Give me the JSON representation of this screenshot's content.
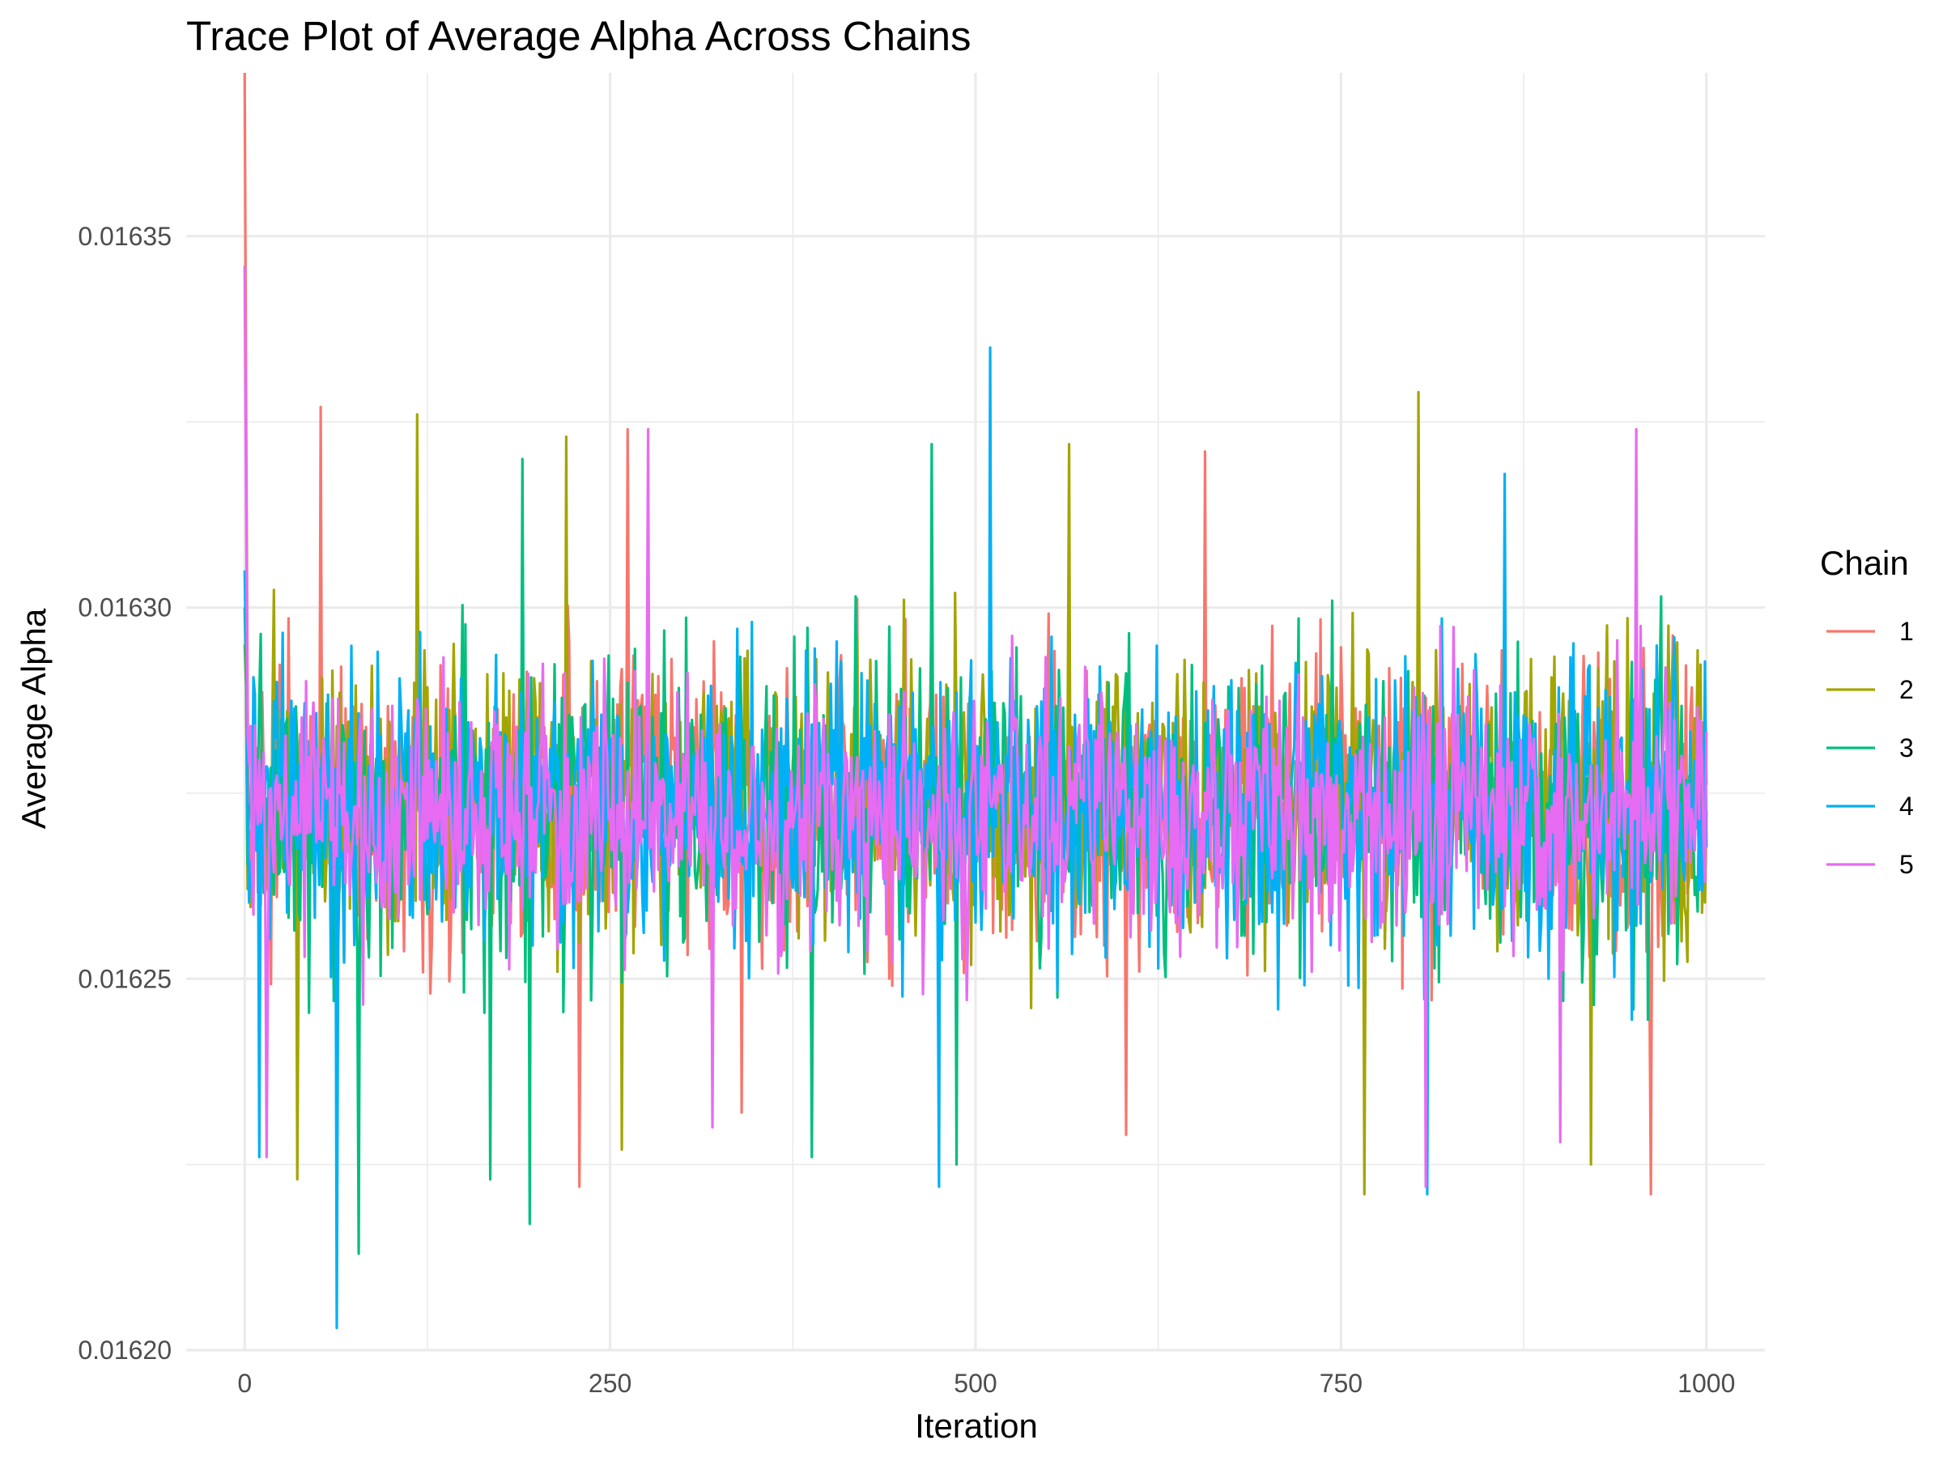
{
  "chart_data": {
    "type": "line",
    "title": "Trace Plot of Average Alpha Across Chains",
    "xlabel": "Iteration",
    "ylabel": "Average Alpha",
    "xlim": [
      -40,
      1040
    ],
    "ylim": [
      0.0162,
      0.016372
    ],
    "x_range": [
      0,
      1000
    ],
    "xticks": [
      0,
      250,
      500,
      750,
      1000
    ],
    "xtick_labels": [
      "0",
      "250",
      "500",
      "750",
      "1000"
    ],
    "yticks": [
      0.0162,
      0.01625,
      0.0163,
      0.01635
    ],
    "ytick_labels": [
      "0.01620",
      "0.01625",
      "0.01630",
      "0.01635"
    ],
    "grid": true,
    "legend": {
      "title": "Chain",
      "position": "right"
    },
    "series": [
      {
        "name": "1",
        "color": "#F8766D",
        "mean": 0.016273,
        "spread": 9.5e-06,
        "start": 0.016372,
        "peaks": [
          {
            "x": 52,
            "y": 0.016327
          },
          {
            "x": 262,
            "y": 0.016324
          },
          {
            "x": 657,
            "y": 0.016321
          },
          {
            "x": 229,
            "y": 0.016222
          },
          {
            "x": 603,
            "y": 0.016229
          },
          {
            "x": 962,
            "y": 0.016221
          },
          {
            "x": 340,
            "y": 0.016232
          }
        ]
      },
      {
        "name": "2",
        "color": "#A3A500",
        "mean": 0.016274,
        "spread": 9.5e-06,
        "start": 0.016295,
        "peaks": [
          {
            "x": 118,
            "y": 0.016326
          },
          {
            "x": 220,
            "y": 0.016323
          },
          {
            "x": 564,
            "y": 0.016322
          },
          {
            "x": 803,
            "y": 0.016329
          },
          {
            "x": 36,
            "y": 0.016223
          },
          {
            "x": 258,
            "y": 0.016227
          },
          {
            "x": 766,
            "y": 0.016221
          },
          {
            "x": 921,
            "y": 0.016225
          }
        ]
      },
      {
        "name": "3",
        "color": "#00BF7D",
        "mean": 0.016273,
        "spread": 9.5e-06,
        "start": 0.0163,
        "peaks": [
          {
            "x": 78,
            "y": 0.016213
          },
          {
            "x": 195,
            "y": 0.016217
          },
          {
            "x": 168,
            "y": 0.016223
          },
          {
            "x": 470,
            "y": 0.016322
          },
          {
            "x": 388,
            "y": 0.016226
          },
          {
            "x": 487,
            "y": 0.016225
          },
          {
            "x": 190,
            "y": 0.01632
          }
        ]
      },
      {
        "name": "4",
        "color": "#00B0F6",
        "mean": 0.016273,
        "spread": 9.5e-06,
        "start": 0.016305,
        "peaks": [
          {
            "x": 63,
            "y": 0.016203
          },
          {
            "x": 510,
            "y": 0.016335
          },
          {
            "x": 475,
            "y": 0.016222
          },
          {
            "x": 809,
            "y": 0.016221
          },
          {
            "x": 10,
            "y": 0.016226
          },
          {
            "x": 862,
            "y": 0.016318
          }
        ]
      },
      {
        "name": "5",
        "color": "#E76BF3",
        "mean": 0.016272,
        "spread": 8.5e-06,
        "start": 0.016346,
        "peaks": [
          {
            "x": 276,
            "y": 0.016324
          },
          {
            "x": 952,
            "y": 0.016324
          },
          {
            "x": 15,
            "y": 0.016226
          },
          {
            "x": 320,
            "y": 0.01623
          },
          {
            "x": 808,
            "y": 0.016222
          },
          {
            "x": 900,
            "y": 0.016228
          }
        ]
      }
    ]
  }
}
